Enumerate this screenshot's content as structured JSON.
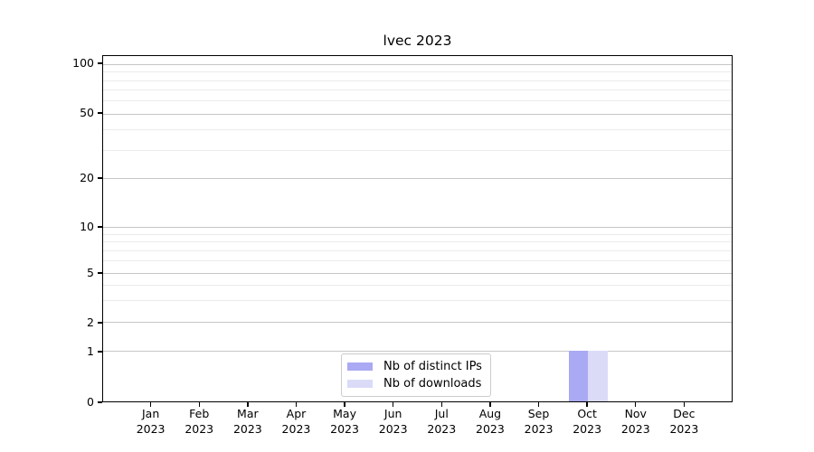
{
  "chart_data": {
    "type": "bar",
    "title": "lvec 2023",
    "categories": [
      "Jan 2023",
      "Feb 2023",
      "Mar 2023",
      "Apr 2023",
      "May 2023",
      "Jun 2023",
      "Jul 2023",
      "Aug 2023",
      "Sep 2023",
      "Oct 2023",
      "Nov 2023",
      "Dec 2023"
    ],
    "series": [
      {
        "name": "Nb of distinct IPs",
        "color": "#a9a9f4",
        "values": [
          0,
          0,
          0,
          0,
          0,
          0,
          0,
          0,
          0,
          1,
          0,
          0
        ]
      },
      {
        "name": "Nb of downloads",
        "color": "#dbdbf8",
        "values": [
          0,
          0,
          0,
          0,
          0,
          0,
          0,
          0,
          0,
          1,
          0,
          0
        ]
      }
    ],
    "yaxis": {
      "scale": "symlog",
      "range": [
        0,
        100
      ],
      "major_ticks": [
        100,
        50,
        20,
        10,
        5,
        2,
        1,
        0
      ],
      "minor_gridline_values": [
        90,
        80,
        70,
        60,
        40,
        30,
        9,
        8,
        7,
        6,
        4,
        3
      ],
      "grid": true
    },
    "xaxis": {
      "tick_label_format": "month-over-year"
    },
    "legend": {
      "position": "lower center",
      "entries": [
        "Nb of distinct IPs",
        "Nb of downloads"
      ]
    }
  }
}
